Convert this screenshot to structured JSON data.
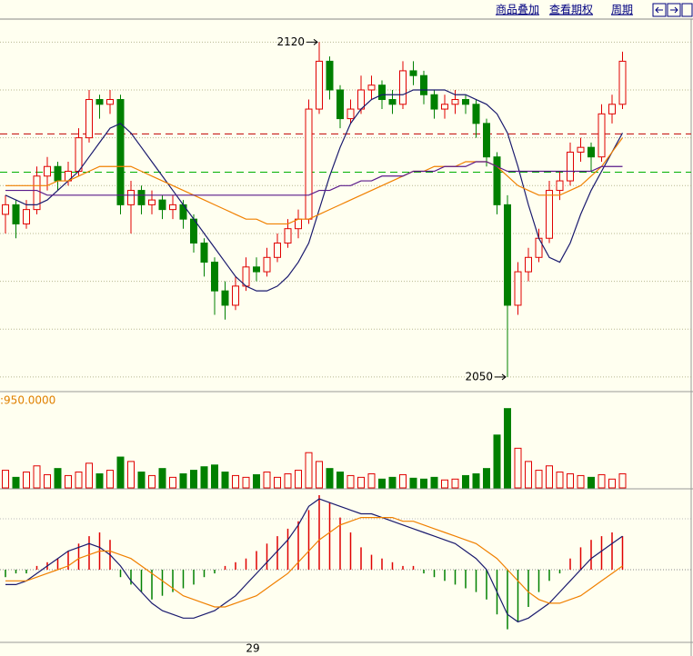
{
  "toolbar": {
    "items": [
      "商品叠加",
      "查看期权",
      "周期"
    ]
  },
  "chart_data": [
    {
      "type": "candlestick",
      "ylim": [
        2046,
        2125
      ],
      "grid_levels": [
        2050,
        2060,
        2070,
        2080,
        2090,
        2100,
        2110,
        2120
      ],
      "up_color": "#e00000",
      "down_color": "#008000",
      "candles": [
        [
          2084,
          2088,
          2080,
          2086
        ],
        [
          2086,
          2087,
          2079,
          2082
        ],
        [
          2082,
          2087,
          2081,
          2085
        ],
        [
          2085,
          2094,
          2084,
          2092
        ],
        [
          2092,
          2096,
          2089,
          2094
        ],
        [
          2094,
          2095,
          2089,
          2091
        ],
        [
          2091,
          2095,
          2090,
          2093
        ],
        [
          2093,
          2102,
          2092,
          2100
        ],
        [
          2100,
          2110,
          2099,
          2108
        ],
        [
          2108,
          2109,
          2104,
          2107
        ],
        [
          2107,
          2110,
          2105,
          2108
        ],
        [
          2108,
          2109,
          2084,
          2086
        ],
        [
          2086,
          2091,
          2080,
          2089
        ],
        [
          2089,
          2090,
          2084,
          2086
        ],
        [
          2086,
          2089,
          2084,
          2087
        ],
        [
          2087,
          2088,
          2083,
          2085
        ],
        [
          2085,
          2088,
          2083,
          2086
        ],
        [
          2086,
          2087,
          2081,
          2083
        ],
        [
          2083,
          2084,
          2076,
          2078
        ],
        [
          2078,
          2079,
          2071,
          2074
        ],
        [
          2074,
          2075,
          2063,
          2068
        ],
        [
          2068,
          2070,
          2062,
          2065
        ],
        [
          2065,
          2071,
          2064,
          2069
        ],
        [
          2069,
          2075,
          2068,
          2073
        ],
        [
          2073,
          2075,
          2070,
          2072
        ],
        [
          2072,
          2077,
          2071,
          2075
        ],
        [
          2075,
          2080,
          2074,
          2078
        ],
        [
          2078,
          2083,
          2077,
          2081
        ],
        [
          2081,
          2085,
          2079,
          2083
        ],
        [
          2083,
          2108,
          2082,
          2106
        ],
        [
          2106,
          2120,
          2105,
          2116
        ],
        [
          2116,
          2117,
          2108,
          2110
        ],
        [
          2110,
          2111,
          2102,
          2104
        ],
        [
          2104,
          2108,
          2103,
          2106
        ],
        [
          2106,
          2113,
          2105,
          2110
        ],
        [
          2110,
          2113,
          2108,
          2111
        ],
        [
          2111,
          2112,
          2106,
          2108
        ],
        [
          2108,
          2110,
          2105,
          2107
        ],
        [
          2107,
          2116,
          2106,
          2114
        ],
        [
          2114,
          2116,
          2111,
          2113
        ],
        [
          2113,
          2114,
          2107,
          2109
        ],
        [
          2109,
          2110,
          2104,
          2106
        ],
        [
          2106,
          2109,
          2104,
          2107
        ],
        [
          2107,
          2110,
          2105,
          2108
        ],
        [
          2108,
          2109,
          2105,
          2107
        ],
        [
          2107,
          2108,
          2100,
          2103
        ],
        [
          2103,
          2104,
          2094,
          2096
        ],
        [
          2096,
          2097,
          2084,
          2086
        ],
        [
          2086,
          2088,
          2050,
          2065
        ],
        [
          2065,
          2074,
          2063,
          2072
        ],
        [
          2072,
          2077,
          2070,
          2075
        ],
        [
          2075,
          2081,
          2074,
          2079
        ],
        [
          2079,
          2091,
          2078,
          2089
        ],
        [
          2089,
          2093,
          2087,
          2091
        ],
        [
          2091,
          2099,
          2090,
          2097
        ],
        [
          2097,
          2100,
          2095,
          2098
        ],
        [
          2098,
          2099,
          2093,
          2096
        ],
        [
          2096,
          2107,
          2095,
          2105
        ],
        [
          2105,
          2109,
          2103,
          2107
        ],
        [
          2107,
          2118,
          2106,
          2116
        ]
      ],
      "series": [
        {
          "color": "#1a1a6e",
          "values": [
            2088,
            2087,
            2086,
            2086,
            2087,
            2089,
            2091,
            2093,
            2096,
            2099,
            2102,
            2103,
            2101,
            2098,
            2095,
            2092,
            2089,
            2086,
            2083,
            2080,
            2077,
            2074,
            2071,
            2069,
            2068,
            2068,
            2069,
            2071,
            2074,
            2078,
            2085,
            2092,
            2098,
            2103,
            2106,
            2108,
            2109,
            2109,
            2109,
            2110,
            2110,
            2110,
            2110,
            2109,
            2109,
            2108,
            2107,
            2105,
            2101,
            2094,
            2086,
            2079,
            2075,
            2074,
            2078,
            2084,
            2089,
            2093,
            2097,
            2101
          ]
        },
        {
          "color": "#f08000",
          "values": [
            2090,
            2090,
            2090,
            2090,
            2090,
            2091,
            2091,
            2092,
            2093,
            2094,
            2094,
            2094,
            2094,
            2093,
            2092,
            2091,
            2090,
            2089,
            2088,
            2087,
            2086,
            2085,
            2084,
            2083,
            2083,
            2082,
            2082,
            2082,
            2083,
            2083,
            2084,
            2085,
            2086,
            2087,
            2088,
            2089,
            2090,
            2091,
            2092,
            2093,
            2093,
            2094,
            2094,
            2094,
            2095,
            2095,
            2095,
            2094,
            2092,
            2090,
            2089,
            2088,
            2088,
            2088,
            2089,
            2090,
            2092,
            2094,
            2097,
            2100
          ]
        },
        {
          "color": "#5a1a8a",
          "values": [
            2089,
            2089,
            2089,
            2089,
            2088,
            2088,
            2088,
            2088,
            2088,
            2088,
            2088,
            2088,
            2088,
            2088,
            2088,
            2088,
            2088,
            2088,
            2088,
            2088,
            2088,
            2088,
            2088,
            2088,
            2088,
            2088,
            2088,
            2088,
            2088,
            2088,
            2089,
            2089,
            2090,
            2090,
            2091,
            2091,
            2092,
            2092,
            2092,
            2093,
            2093,
            2093,
            2094,
            2094,
            2094,
            2095,
            2095,
            2094,
            2093,
            2093,
            2093,
            2093,
            2093,
            2093,
            2093,
            2093,
            2093,
            2094,
            2094,
            2094
          ]
        }
      ],
      "ref_lines": [
        {
          "value": 2100.8,
          "color": "#c00000"
        },
        {
          "value": 2092.8,
          "color": "#00b000"
        }
      ],
      "annotations": [
        {
          "value": 2120,
          "label": "2120"
        },
        {
          "value": 2050,
          "label": "2050"
        }
      ]
    },
    {
      "type": "bar",
      "label": ":950.0000",
      "label_color": "#e08000",
      "ylim": [
        0,
        100
      ],
      "values": [
        20,
        12,
        18,
        25,
        15,
        22,
        14,
        18,
        28,
        16,
        20,
        35,
        30,
        18,
        14,
        22,
        12,
        16,
        20,
        24,
        26,
        18,
        14,
        12,
        15,
        18,
        12,
        16,
        20,
        40,
        30,
        22,
        18,
        14,
        12,
        16,
        10,
        12,
        15,
        11,
        10,
        12,
        9,
        10,
        14,
        16,
        22,
        60,
        90,
        45,
        30,
        20,
        25,
        18,
        16,
        14,
        12,
        15,
        10,
        16
      ]
    },
    {
      "type": "macd",
      "ylim": [
        -20,
        20
      ],
      "categories": [
        null,
        null,
        null,
        null,
        null,
        null,
        null,
        null,
        null,
        null,
        null,
        null,
        null,
        null,
        null,
        null,
        null,
        null,
        null,
        null,
        null,
        null,
        null,
        null,
        "29",
        null,
        null,
        null,
        null,
        null,
        null,
        null,
        null,
        null,
        null,
        null,
        null,
        null,
        null,
        null,
        null,
        null,
        null,
        null,
        null,
        null,
        null,
        null,
        null,
        null,
        null,
        null,
        null,
        null,
        null,
        null,
        null,
        null,
        null,
        null
      ],
      "histogram": [
        -2,
        -1,
        -1,
        1,
        2,
        3,
        5,
        7,
        9,
        10,
        8,
        -2,
        -4,
        -6,
        -8,
        -7,
        -6,
        -5,
        -4,
        -2,
        -1,
        1,
        2,
        3,
        5,
        7,
        9,
        11,
        13,
        16,
        20,
        18,
        14,
        10,
        6,
        4,
        3,
        2,
        1,
        1,
        -1,
        -2,
        -3,
        -4,
        -5,
        -6,
        -8,
        -12,
        -16,
        -14,
        -10,
        -6,
        -3,
        -1,
        3,
        6,
        8,
        9,
        10,
        9
      ],
      "series": [
        {
          "color": "#1a1a6e",
          "values": [
            -4,
            -4,
            -3,
            -1,
            1,
            3,
            5,
            6,
            7,
            6,
            4,
            1,
            -3,
            -6,
            -9,
            -11,
            -12,
            -13,
            -13,
            -12,
            -11,
            -9,
            -7,
            -4,
            -1,
            2,
            5,
            8,
            12,
            17,
            19,
            18,
            17,
            16,
            15,
            15,
            14,
            13,
            12,
            11,
            10,
            9,
            8,
            7,
            5,
            3,
            0,
            -6,
            -12,
            -14,
            -13,
            -11,
            -9,
            -6,
            -3,
            0,
            3,
            5,
            7,
            9
          ]
        },
        {
          "color": "#f08000",
          "values": [
            -3,
            -3,
            -3,
            -2,
            -1,
            0,
            1,
            3,
            4,
            5,
            5,
            4,
            3,
            1,
            -1,
            -3,
            -5,
            -7,
            -8,
            -9,
            -10,
            -10,
            -9,
            -8,
            -7,
            -5,
            -3,
            -1,
            2,
            5,
            8,
            10,
            12,
            13,
            14,
            14,
            14,
            14,
            13,
            13,
            12,
            11,
            10,
            9,
            8,
            7,
            5,
            3,
            0,
            -3,
            -6,
            -8,
            -9,
            -9,
            -8,
            -7,
            -5,
            -3,
            -1,
            1
          ]
        }
      ]
    }
  ]
}
